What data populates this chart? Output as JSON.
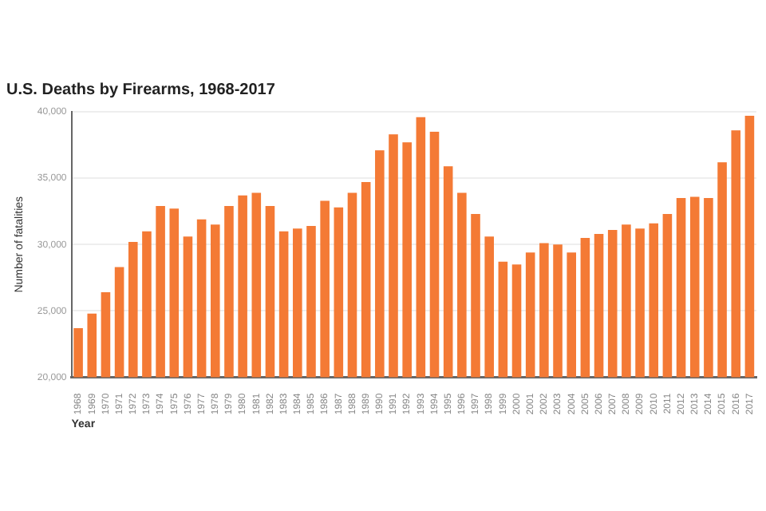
{
  "chart_data": {
    "type": "bar",
    "title": "U.S. Deaths by Firearms, 1968-2017",
    "xlabel": "Year",
    "ylabel": "Number of fatalities",
    "categories": [
      "1968",
      "1969",
      "1970",
      "1971",
      "1972",
      "1973",
      "1974",
      "1975",
      "1976",
      "1977",
      "1978",
      "1979",
      "1980",
      "1981",
      "1982",
      "1983",
      "1984",
      "1985",
      "1986",
      "1987",
      "1988",
      "1989",
      "1990",
      "1991",
      "1992",
      "1993",
      "1994",
      "1995",
      "1996",
      "1997",
      "1998",
      "1999",
      "2000",
      "2001",
      "2002",
      "2003",
      "2004",
      "2005",
      "2006",
      "2007",
      "2008",
      "2009",
      "2010",
      "2011",
      "2012",
      "2013",
      "2014",
      "2015",
      "2016",
      "2017"
    ],
    "values": [
      23700,
      24800,
      26400,
      28300,
      30200,
      31000,
      32900,
      32700,
      30600,
      31900,
      31500,
      32900,
      33700,
      33900,
      32900,
      31000,
      31200,
      31400,
      33300,
      32800,
      33900,
      34700,
      37100,
      38300,
      37700,
      39600,
      38500,
      35900,
      33900,
      32300,
      30600,
      28700,
      28500,
      29400,
      30100,
      30000,
      29400,
      30500,
      30800,
      31100,
      31500,
      31200,
      31600,
      32300,
      33500,
      33600,
      33500,
      36200,
      38600,
      39700
    ],
    "color": "#f47a35",
    "ylim": [
      20000,
      40000
    ],
    "yticks": [
      {
        "value": 20000,
        "label": "20,000"
      },
      {
        "value": 25000,
        "label": "25,000"
      },
      {
        "value": 30000,
        "label": "30,000"
      },
      {
        "value": 35000,
        "label": "35,000"
      },
      {
        "value": 40000,
        "label": "40,000"
      }
    ],
    "grid": "y",
    "legend": false
  }
}
